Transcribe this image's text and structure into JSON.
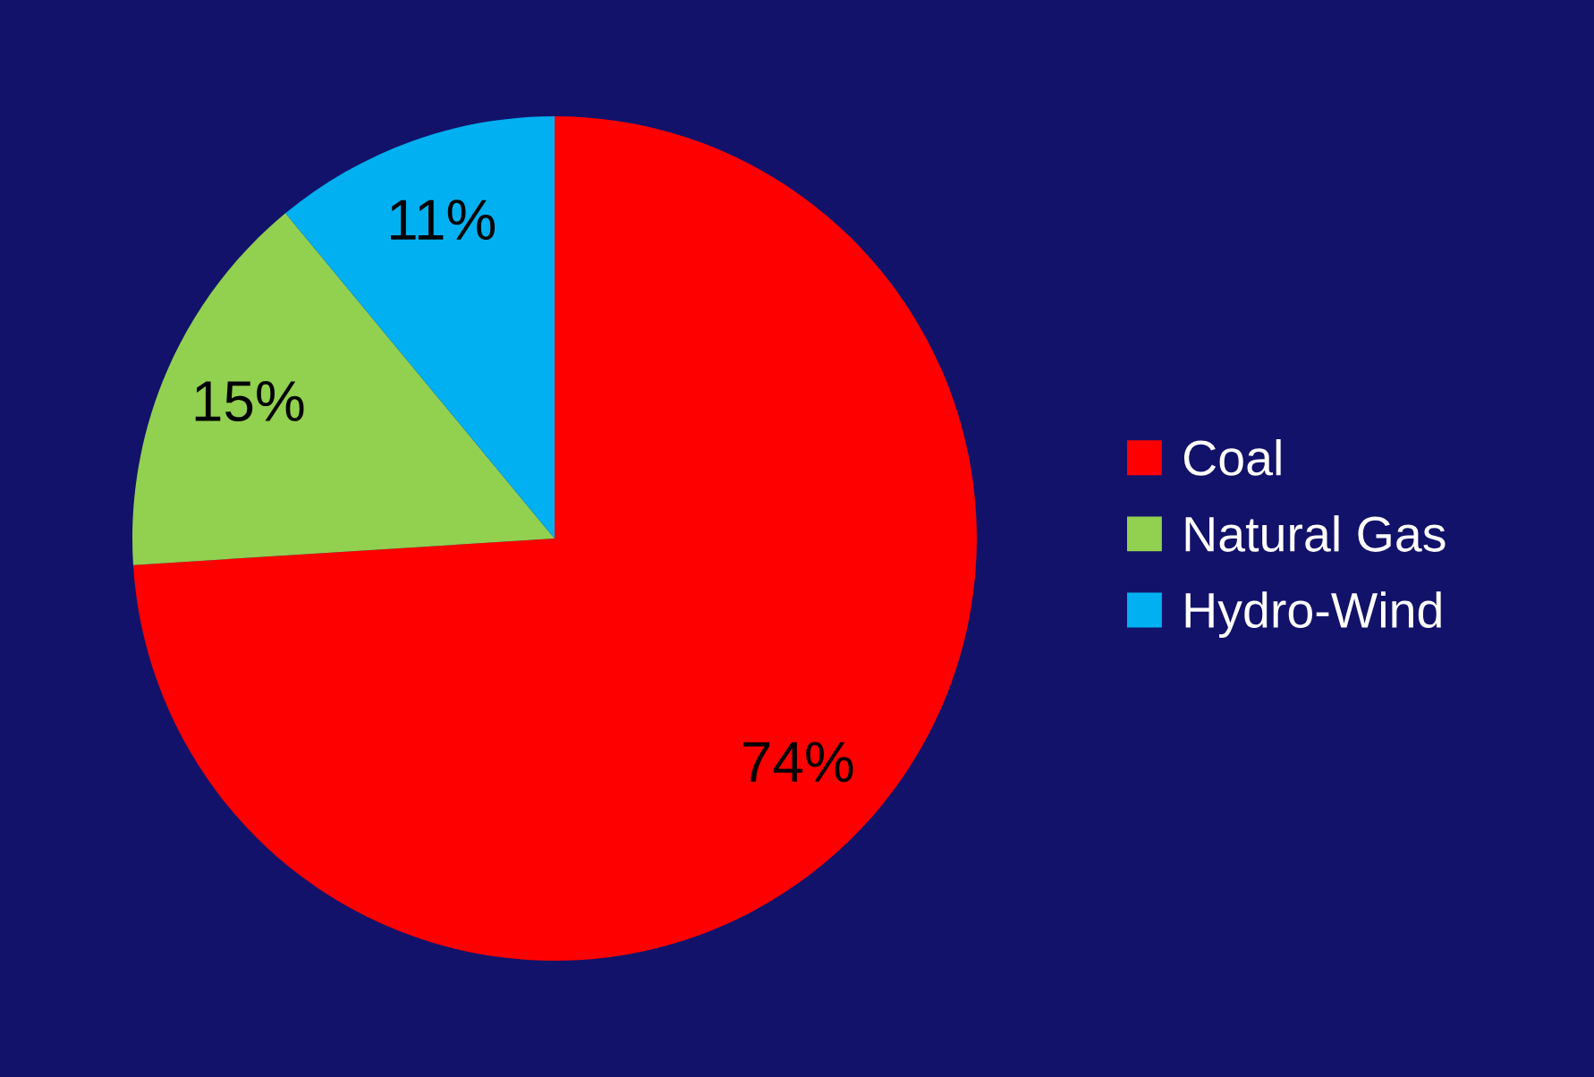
{
  "chart_data": {
    "type": "pie",
    "categories": [
      "Coal",
      "Natural Gas",
      "Hydro-Wind"
    ],
    "values": [
      74,
      15,
      11
    ],
    "colors": [
      "#ff0000",
      "#92d050",
      "#00b0f0"
    ],
    "value_labels": [
      "74%",
      "15%",
      "11%"
    ],
    "legend": "right"
  }
}
